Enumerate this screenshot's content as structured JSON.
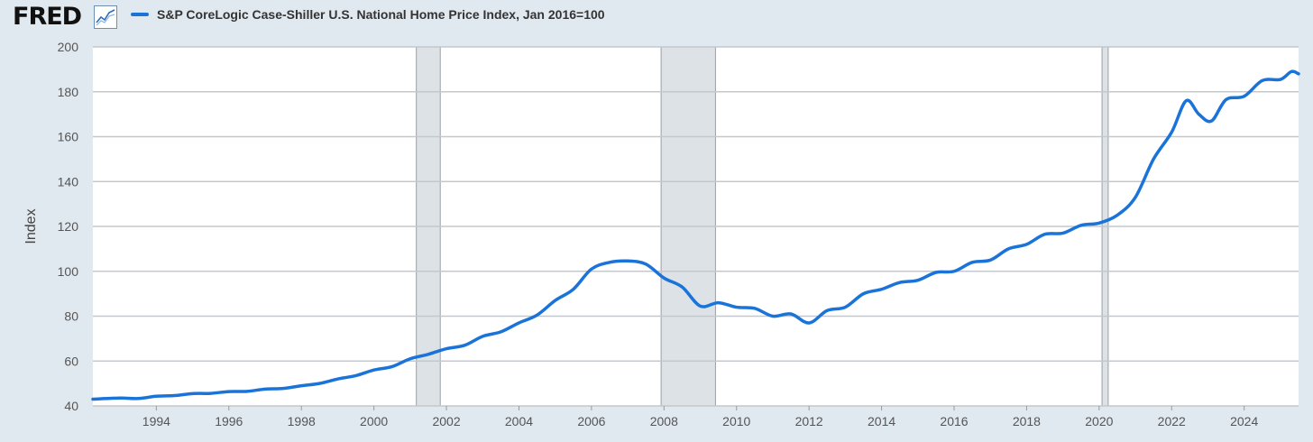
{
  "header": {
    "logo_text": "FRED",
    "logo_icon": "chart-line-icon",
    "legend_label": "S&P CoreLogic Case-Shiller U.S. National Home Price Index, Jan 2016=100"
  },
  "colors": {
    "series": "#1a73d9",
    "recession": "#dde2e7",
    "grid": "#c4c8cc",
    "plot_bg": "#ffffff",
    "page_bg": "#e1e9f0"
  },
  "chart_data": {
    "type": "line",
    "title": "S&P CoreLogic Case-Shiller U.S. National Home Price Index, Jan 2016=100",
    "xlabel": "",
    "ylabel": "Index",
    "xlim": [
      1992.25,
      2025.5
    ],
    "ylim": [
      40,
      200
    ],
    "yticks": [
      40,
      60,
      80,
      100,
      120,
      140,
      160,
      180,
      200
    ],
    "xticks": [
      1994,
      1996,
      1998,
      2000,
      2002,
      2004,
      2006,
      2008,
      2010,
      2012,
      2014,
      2016,
      2018,
      2020,
      2022,
      2024
    ],
    "grid": true,
    "legend_position": "top-left",
    "recessions": [
      [
        2001.17,
        2001.83
      ],
      [
        2007.92,
        2009.42
      ],
      [
        2020.08,
        2020.25
      ]
    ],
    "series": [
      {
        "name": "S&P CoreLogic Case-Shiller U.S. National Home Price Index, Jan 2016=100",
        "points": [
          [
            1992.25,
            43.0
          ],
          [
            1993.0,
            43.5
          ],
          [
            1993.5,
            43.3
          ],
          [
            1994.0,
            44.3
          ],
          [
            1994.5,
            44.6
          ],
          [
            1995.0,
            45.5
          ],
          [
            1995.5,
            45.6
          ],
          [
            1996.0,
            46.4
          ],
          [
            1996.5,
            46.5
          ],
          [
            1997.0,
            47.5
          ],
          [
            1997.5,
            47.8
          ],
          [
            1998.0,
            49.0
          ],
          [
            1998.5,
            50.0
          ],
          [
            1999.0,
            52.0
          ],
          [
            1999.5,
            53.5
          ],
          [
            2000.0,
            56.0
          ],
          [
            2000.5,
            57.5
          ],
          [
            2001.0,
            61.0
          ],
          [
            2001.5,
            63.0
          ],
          [
            2002.0,
            65.5
          ],
          [
            2002.5,
            67.0
          ],
          [
            2003.0,
            71.0
          ],
          [
            2003.5,
            73.0
          ],
          [
            2004.0,
            77.0
          ],
          [
            2004.5,
            80.5
          ],
          [
            2005.0,
            87.0
          ],
          [
            2005.5,
            92.0
          ],
          [
            2006.0,
            101.0
          ],
          [
            2006.5,
            104.0
          ],
          [
            2007.0,
            104.6
          ],
          [
            2007.5,
            103.2
          ],
          [
            2008.0,
            97.0
          ],
          [
            2008.5,
            93.0
          ],
          [
            2009.0,
            84.5
          ],
          [
            2009.5,
            86.0
          ],
          [
            2010.0,
            84.0
          ],
          [
            2010.5,
            83.5
          ],
          [
            2011.0,
            80.0
          ],
          [
            2011.5,
            81.0
          ],
          [
            2012.0,
            77.0
          ],
          [
            2012.5,
            82.5
          ],
          [
            2013.0,
            84.0
          ],
          [
            2013.5,
            90.0
          ],
          [
            2014.0,
            92.0
          ],
          [
            2014.5,
            95.0
          ],
          [
            2015.0,
            96.0
          ],
          [
            2015.5,
            99.5
          ],
          [
            2016.0,
            100.0
          ],
          [
            2016.5,
            104.0
          ],
          [
            2017.0,
            105.0
          ],
          [
            2017.5,
            110.0
          ],
          [
            2018.0,
            112.0
          ],
          [
            2018.5,
            116.5
          ],
          [
            2019.0,
            117.0
          ],
          [
            2019.5,
            120.5
          ],
          [
            2020.0,
            121.5
          ],
          [
            2020.5,
            125.0
          ],
          [
            2021.0,
            133.0
          ],
          [
            2021.5,
            150.0
          ],
          [
            2022.0,
            162.0
          ],
          [
            2022.4,
            176.0
          ],
          [
            2022.75,
            170.0
          ],
          [
            2023.1,
            167.0
          ],
          [
            2023.5,
            176.5
          ],
          [
            2024.0,
            178.0
          ],
          [
            2024.5,
            185.0
          ],
          [
            2025.0,
            185.5
          ],
          [
            2025.3,
            189.0
          ],
          [
            2025.5,
            188.0
          ]
        ]
      }
    ]
  }
}
